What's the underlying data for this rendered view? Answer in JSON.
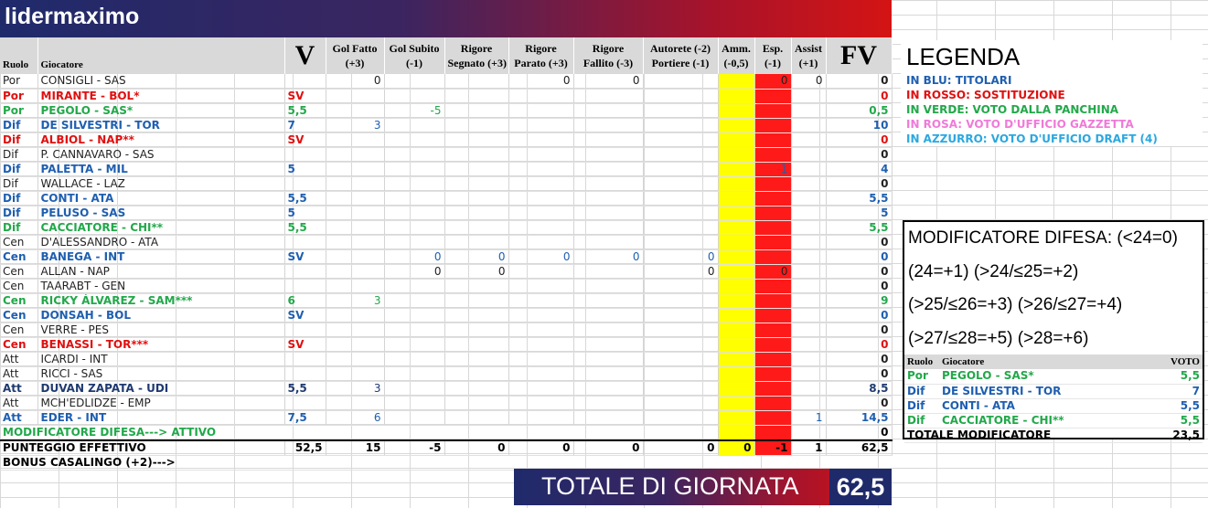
{
  "team": "lidermaximo",
  "headers": {
    "ruolo": "Ruolo",
    "giocatore": "Giocatore",
    "v": "V",
    "gol_fatto": [
      "Gol Fatto",
      "(+3)"
    ],
    "gol_subito": [
      "Gol Subito",
      "(-1)"
    ],
    "rig_segnato": [
      "Rigore",
      "Segnato (+3)"
    ],
    "rig_parato": [
      "Rigore",
      "Parato (+3)"
    ],
    "rig_fallito": [
      "Rigore",
      "Fallito (-3)"
    ],
    "autorete": [
      "Autorete (-2)",
      "Portiere (-1)"
    ],
    "amm": [
      "Amm.",
      "(-0,5)"
    ],
    "esp": [
      "Esp.",
      "(-1)"
    ],
    "assist": [
      "Assist",
      "(+1)"
    ],
    "fv": "FV"
  },
  "rows": [
    {
      "r": "Por",
      "g": "CONSIGLI - SAS",
      "c": "black",
      "v": "",
      "gf": "0",
      "gs": "",
      "rs": "",
      "rp": "0",
      "rf": "0",
      "au": "",
      "am": "",
      "es": "0",
      "as": "0",
      "fv": "0"
    },
    {
      "r": "Por",
      "g": "MIRANTE - BOL*",
      "c": "red",
      "v": "SV",
      "gf": "",
      "gs": "",
      "rs": "",
      "rp": "",
      "rf": "",
      "au": "",
      "am": "",
      "es": "",
      "as": "",
      "fv": "0"
    },
    {
      "r": "Por",
      "g": "PEGOLO - SAS*",
      "c": "green",
      "v": "5,5",
      "gf": "",
      "gs": "-5",
      "rs": "",
      "rp": "",
      "rf": "",
      "au": "",
      "am": "",
      "es": "",
      "as": "",
      "fv": "0,5"
    },
    {
      "r": "Dif",
      "g": "DE SILVESTRI - TOR",
      "c": "blue",
      "v": "7",
      "gf": "3",
      "gs": "",
      "rs": "",
      "rp": "",
      "rf": "",
      "au": "",
      "am": "",
      "es": "",
      "as": "",
      "fv": "10"
    },
    {
      "r": "Dif",
      "g": "ALBIOL - NAP**",
      "c": "red",
      "v": "SV",
      "gf": "",
      "gs": "",
      "rs": "",
      "rp": "",
      "rf": "",
      "au": "",
      "am": "",
      "es": "",
      "as": "",
      "fv": "0"
    },
    {
      "r": "Dif",
      "g": "P. CANNAVARO - SAS",
      "c": "black",
      "v": "",
      "gf": "",
      "gs": "",
      "rs": "",
      "rp": "",
      "rf": "",
      "au": "",
      "am": "",
      "es": "",
      "as": "",
      "fv": "0"
    },
    {
      "r": "Dif",
      "g": "PALETTA - MIL",
      "c": "blue",
      "v": "5",
      "gf": "",
      "gs": "",
      "rs": "",
      "rp": "",
      "rf": "",
      "au": "",
      "am": "",
      "es": "-1",
      "as": "",
      "fv": "4"
    },
    {
      "r": "Dif",
      "g": "WALLACE - LAZ",
      "c": "black",
      "v": "",
      "gf": "",
      "gs": "",
      "rs": "",
      "rp": "",
      "rf": "",
      "au": "",
      "am": "",
      "es": "",
      "as": "",
      "fv": "0"
    },
    {
      "r": "Dif",
      "g": "CONTI - ATA",
      "c": "blue",
      "v": "5,5",
      "gf": "",
      "gs": "",
      "rs": "",
      "rp": "",
      "rf": "",
      "au": "",
      "am": "",
      "es": "",
      "as": "",
      "fv": "5,5"
    },
    {
      "r": "Dif",
      "g": "PELUSO - SAS",
      "c": "blue",
      "v": "5",
      "gf": "",
      "gs": "",
      "rs": "",
      "rp": "",
      "rf": "",
      "au": "",
      "am": "",
      "es": "",
      "as": "",
      "fv": "5"
    },
    {
      "r": "Dif",
      "g": "CACCIATORE - CHI**",
      "c": "green",
      "v": "5,5",
      "gf": "",
      "gs": "",
      "rs": "",
      "rp": "",
      "rf": "",
      "au": "",
      "am": "",
      "es": "",
      "as": "",
      "fv": "5,5"
    },
    {
      "r": "Cen",
      "g": "D'ALESSANDRO - ATA",
      "c": "black",
      "v": "",
      "gf": "",
      "gs": "",
      "rs": "",
      "rp": "",
      "rf": "",
      "au": "",
      "am": "",
      "es": "",
      "as": "",
      "fv": "0"
    },
    {
      "r": "Cen",
      "g": "BANEGA - INT",
      "c": "blue",
      "v": "SV",
      "gf": "",
      "gs": "0",
      "rs": "0",
      "rp": "0",
      "rf": "0",
      "au": "0",
      "am": "",
      "es": "",
      "as": "",
      "fv": "0"
    },
    {
      "r": "Cen",
      "g": "ALLAN - NAP",
      "c": "black",
      "v": "",
      "gf": "",
      "gs": "0",
      "rs": "0",
      "rp": "",
      "rf": "",
      "au": "0",
      "am": "",
      "es": "0",
      "as": "",
      "fv": "0"
    },
    {
      "r": "Cen",
      "g": "TAARABT - GEN",
      "c": "black",
      "v": "",
      "gf": "",
      "gs": "",
      "rs": "",
      "rp": "",
      "rf": "",
      "au": "",
      "am": "",
      "es": "",
      "as": "",
      "fv": "0"
    },
    {
      "r": "Cen",
      "g": "RICKY ÁLVAREZ - SAM***",
      "c": "green",
      "v": "6",
      "gf": "3",
      "gs": "",
      "rs": "",
      "rp": "",
      "rf": "",
      "au": "",
      "am": "",
      "es": "",
      "as": "",
      "fv": "9"
    },
    {
      "r": "Cen",
      "g": "DONSAH - BOL",
      "c": "blue",
      "v": "SV",
      "gf": "",
      "gs": "",
      "rs": "",
      "rp": "",
      "rf": "",
      "au": "",
      "am": "",
      "es": "",
      "as": "",
      "fv": "0"
    },
    {
      "r": "Cen",
      "g": "VERRE - PES",
      "c": "black",
      "v": "",
      "gf": "",
      "gs": "",
      "rs": "",
      "rp": "",
      "rf": "",
      "au": "",
      "am": "",
      "es": "",
      "as": "",
      "fv": "0"
    },
    {
      "r": "Cen",
      "g": "BENASSI - TOR***",
      "c": "red",
      "v": "SV",
      "gf": "",
      "gs": "",
      "rs": "",
      "rp": "",
      "rf": "",
      "au": "",
      "am": "",
      "es": "",
      "as": "",
      "fv": "0"
    },
    {
      "r": "Att",
      "g": "ICARDI - INT",
      "c": "black",
      "v": "",
      "gf": "",
      "gs": "",
      "rs": "",
      "rp": "",
      "rf": "",
      "au": "",
      "am": "",
      "es": "",
      "as": "",
      "fv": "0"
    },
    {
      "r": "Att",
      "g": "RICCI - SAS",
      "c": "black",
      "v": "",
      "gf": "",
      "gs": "",
      "rs": "",
      "rp": "",
      "rf": "",
      "au": "",
      "am": "",
      "es": "",
      "as": "",
      "fv": "0"
    },
    {
      "r": "Att",
      "g": "DUVAN ZAPATA - UDI",
      "c": "navy",
      "v": "5,5",
      "gf": "3",
      "gs": "",
      "rs": "",
      "rp": "",
      "rf": "",
      "au": "",
      "am": "",
      "es": "",
      "as": "",
      "fv": "8,5"
    },
    {
      "r": "Att",
      "g": "MCH'EDLIDZE - EMP",
      "c": "black",
      "v": "",
      "gf": "",
      "gs": "",
      "rs": "",
      "rp": "",
      "rf": "",
      "au": "",
      "am": "",
      "es": "",
      "as": "",
      "fv": "0"
    },
    {
      "r": "Att",
      "g": "EDER - INT",
      "c": "blue",
      "v": "7,5",
      "gf": "6",
      "gs": "",
      "rs": "",
      "rp": "",
      "rf": "",
      "au": "",
      "am": "",
      "es": "",
      "as": "1",
      "fv": "14,5"
    }
  ],
  "modificatore_row": {
    "label": "MODIFICATORE DIFESA---> ATTIVO",
    "fv": "0"
  },
  "totals": {
    "label": "PUNTEGGIO EFFETTIVO",
    "v": "52,5",
    "gf": "15",
    "gs": "-5",
    "rs": "0",
    "rp": "0",
    "rf": "0",
    "au": "0",
    "am": "0",
    "es": "-1",
    "as": "1",
    "fv": "62,5"
  },
  "bonus_label": "BONUS CASALINGO (+2)--->",
  "totale": {
    "label": "TOTALE DI GIORNATA",
    "value": "62,5"
  },
  "legenda": {
    "title": "LEGENDA",
    "lines": [
      {
        "text": "IN BLU: TITOLARI",
        "c": "blue"
      },
      {
        "text": "IN ROSSO: SOSTITUZIONE",
        "c": "red"
      },
      {
        "text": "IN VERDE: VOTO DALLA PANCHINA",
        "c": "green"
      },
      {
        "text": "IN ROSA: VOTO D'UFFICIO GAZZETTA",
        "c": "pink"
      },
      {
        "text": "IN AZZURRO: VOTO D'UFFICIO DRAFT (4)",
        "c": "cyan"
      }
    ]
  },
  "modificatore": {
    "lines": [
      "MODIFICATORE DIFESA: (<24=0)",
      "(24=+1) (>24/≤25=+2)",
      "(>25/≤26=+3) (>26/≤27=+4)",
      "(>27/≤28=+5) (>28=+6)"
    ],
    "headers": {
      "ruolo": "Ruolo",
      "giocatore": "Giocatore",
      "voto": "VOTO"
    },
    "rows": [
      {
        "r": "Por",
        "g": "PEGOLO - SAS*",
        "v": "5,5",
        "c": "green"
      },
      {
        "r": "Dif",
        "g": "DE SILVESTRI - TOR",
        "v": "7",
        "c": "blue"
      },
      {
        "r": "Dif",
        "g": "CONTI - ATA",
        "v": "5,5",
        "c": "blue"
      },
      {
        "r": "Dif",
        "g": "CACCIATORE - CHI**",
        "v": "5,5",
        "c": "green"
      }
    ],
    "totale_label": "TOTALE MODIFICATORE",
    "totale_value": "23,5"
  },
  "colors": {
    "banner_blue": "#1f2a6b",
    "banner_red": "#d41414",
    "amm_yellow": "#ffff00",
    "esp_red": "#ff1a1a"
  }
}
